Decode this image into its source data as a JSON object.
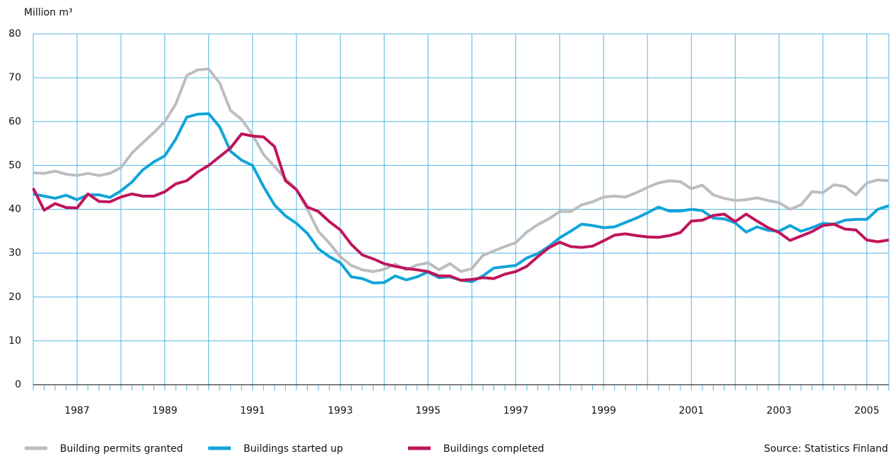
{
  "chart_data": {
    "type": "line",
    "y_axis_label": "Million m³",
    "source": "Source: Statistics Finland",
    "x": [
      1986,
      1986.25,
      1986.5,
      1986.75,
      1987,
      1987.25,
      1987.5,
      1987.75,
      1988,
      1988.25,
      1988.5,
      1988.75,
      1989,
      1989.25,
      1989.5,
      1989.75,
      1990,
      1990.25,
      1990.5,
      1990.75,
      1991,
      1991.25,
      1991.5,
      1991.75,
      1992,
      1992.25,
      1992.5,
      1992.75,
      1993,
      1993.25,
      1993.5,
      1993.75,
      1994,
      1994.25,
      1994.5,
      1994.75,
      1995,
      1995.25,
      1995.5,
      1995.75,
      1996,
      1996.25,
      1996.5,
      1996.75,
      1997,
      1997.25,
      1997.5,
      1997.75,
      1998,
      1998.25,
      1998.5,
      1998.75,
      1999,
      1999.25,
      1999.5,
      1999.75,
      2000,
      2000.25,
      2000.5,
      2000.75,
      2001,
      2001.25,
      2001.5,
      2001.75,
      2002,
      2002.25,
      2002.5,
      2002.75,
      2003,
      2003.25,
      2003.5,
      2003.75,
      2004,
      2004.25,
      2004.5,
      2004.75,
      2005,
      2005.25,
      2005.5
    ],
    "series": [
      {
        "name": "Building permits granted",
        "color": "#bdbdbf",
        "values": [
          48.3,
          48.2,
          48.7,
          48.0,
          47.7,
          48.2,
          47.7,
          48.2,
          49.5,
          52.8,
          55.2,
          57.5,
          60.0,
          64.0,
          70.5,
          71.8,
          72.0,
          68.8,
          62.5,
          60.5,
          57.0,
          52.5,
          49.8,
          47.0,
          44.5,
          40.0,
          35.0,
          32.3,
          29.2,
          27.2,
          26.2,
          25.8,
          26.3,
          27.5,
          26.2,
          27.3,
          27.8,
          26.2,
          27.6,
          25.8,
          26.5,
          29.5,
          30.5,
          31.5,
          32.4,
          34.8,
          36.5,
          37.8,
          39.5,
          39.5,
          41.0,
          41.7,
          42.8,
          43.0,
          42.8,
          43.8,
          45.0,
          46.0,
          46.5,
          46.3,
          44.7,
          45.5,
          43.3,
          42.5,
          42.0,
          42.2,
          42.6,
          42.0,
          41.5,
          40.0,
          41.0,
          44.0,
          43.8,
          45.6,
          45.2,
          43.3,
          46.0,
          46.7,
          46.5
        ]
      },
      {
        "name": "Buildings started up",
        "color": "#12a4da",
        "values": [
          43.5,
          43.0,
          42.5,
          43.2,
          42.2,
          43.3,
          43.3,
          42.7,
          44.2,
          46.2,
          49.0,
          50.8,
          52.2,
          56.0,
          61.0,
          61.7,
          61.8,
          58.8,
          53.2,
          51.2,
          50.0,
          45.2,
          41.0,
          38.5,
          36.8,
          34.5,
          31.0,
          29.2,
          27.8,
          24.6,
          24.2,
          23.2,
          23.3,
          24.8,
          23.9,
          24.6,
          25.7,
          24.4,
          24.6,
          23.8,
          23.5,
          24.8,
          26.6,
          26.9,
          27.2,
          28.9,
          29.9,
          31.5,
          33.5,
          35.0,
          36.6,
          36.3,
          35.8,
          36.0,
          37.0,
          38.0,
          39.2,
          40.5,
          39.6,
          39.6,
          40.0,
          39.7,
          38.0,
          37.8,
          36.9,
          34.8,
          36.0,
          35.2,
          35.0,
          36.3,
          35.0,
          35.8,
          36.8,
          36.6,
          37.5,
          37.7,
          37.7,
          40.0,
          40.8
        ]
      },
      {
        "name": "Buildings completed",
        "color": "#c0145b",
        "values": [
          44.8,
          39.8,
          41.3,
          40.4,
          40.3,
          43.5,
          41.8,
          41.7,
          42.8,
          43.5,
          43.0,
          43.0,
          44.0,
          45.8,
          46.5,
          48.5,
          50.0,
          52.0,
          54.0,
          57.2,
          56.7,
          56.5,
          54.3,
          46.5,
          44.5,
          40.5,
          39.5,
          37.2,
          35.3,
          32.0,
          29.6,
          28.7,
          27.6,
          27.0,
          26.5,
          26.2,
          25.8,
          24.8,
          24.8,
          23.8,
          24.0,
          24.4,
          24.2,
          25.2,
          25.8,
          27.0,
          29.2,
          31.2,
          32.5,
          31.5,
          31.3,
          31.6,
          32.8,
          34.1,
          34.4,
          34.0,
          33.7,
          33.6,
          34.0,
          34.7,
          37.3,
          37.5,
          38.6,
          38.9,
          37.2,
          38.9,
          37.3,
          35.8,
          34.7,
          32.9,
          33.9,
          34.9,
          36.3,
          36.6,
          35.5,
          35.3,
          33.0,
          32.6,
          33.0
        ]
      }
    ],
    "xlim": [
      1986,
      2005.5
    ],
    "xticks": [
      1987,
      1989,
      1991,
      1993,
      1995,
      1997,
      1999,
      2001,
      2003,
      2005
    ],
    "xgrid": [
      1986,
      1988,
      1990,
      1992,
      1994,
      1996,
      1998,
      2000,
      2002,
      2004
    ],
    "ylim": [
      0,
      80
    ],
    "yticks": [
      0,
      10,
      20,
      30,
      40,
      50,
      60,
      70,
      80
    ],
    "grid": true,
    "legend": "bottom"
  }
}
